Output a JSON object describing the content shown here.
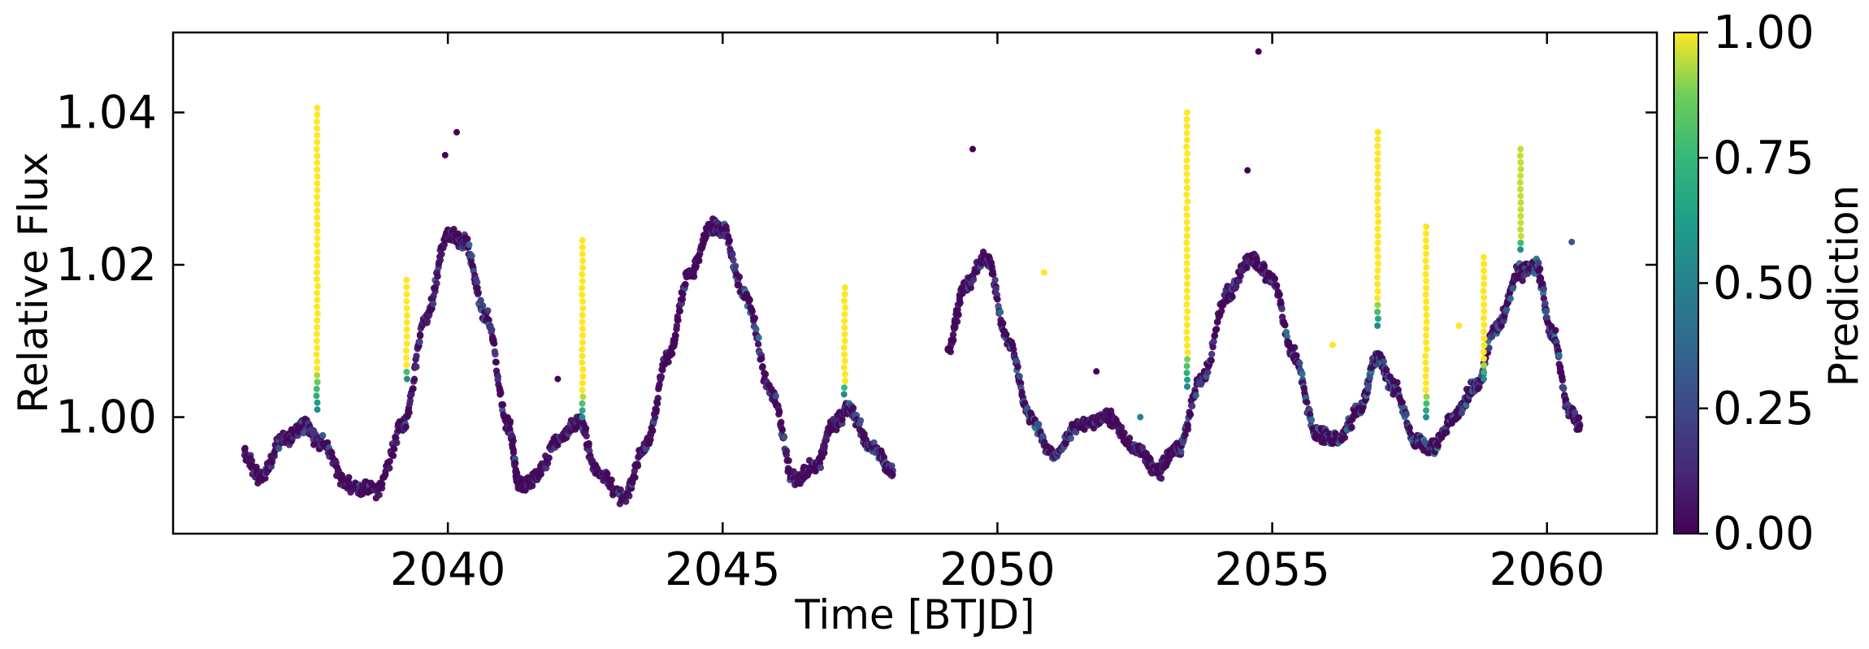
{
  "chart_data": {
    "type": "scatter",
    "title": "",
    "xlabel": "Time [BTJD]",
    "ylabel": "Relative Flux",
    "xlim": [
      2035.0,
      2062.0
    ],
    "ylim": [
      0.9847,
      1.0505
    ],
    "xticks": [
      2040,
      2045,
      2050,
      2055,
      2060
    ],
    "xtick_labels": [
      "2040",
      "2045",
      "2050",
      "2055",
      "2060"
    ],
    "yticks": [
      1.0,
      1.02,
      1.04
    ],
    "ytick_labels": [
      "1.00",
      "1.02",
      "1.04"
    ],
    "grid": false,
    "colorbar": {
      "label": "Prediction",
      "colormap": "viridis",
      "range": [
        0.0,
        1.0
      ],
      "ticks": [
        0.0,
        0.25,
        0.5,
        0.75,
        1.0
      ],
      "tick_labels": [
        "0.00",
        "0.25",
        "0.50",
        "0.75",
        "1.00"
      ]
    },
    "colors": {
      "low": "#440154",
      "mid_low": "#3b528b",
      "mid": "#21918c",
      "mid_high": "#5ec962",
      "high": "#fde725"
    },
    "series": [
      {
        "segment": "first",
        "x": [
          2036.3,
          2036.6,
          2037.0,
          2037.4,
          2037.7,
          2038.2,
          2038.7,
          2039.2,
          2039.6,
          2040.0,
          2040.3,
          2040.7,
          2041.1,
          2041.3,
          2041.6,
          2042.0,
          2042.4,
          2042.7,
          2043.2,
          2043.6,
          2044.0,
          2044.4,
          2044.8,
          2045.0,
          2045.4,
          2045.9,
          2046.3,
          2046.7,
          2047.0,
          2047.3,
          2047.7,
          2048.1
        ],
        "y": [
          0.995,
          0.992,
          0.997,
          0.999,
          0.9965,
          0.991,
          0.9905,
          0.999,
          1.013,
          1.024,
          1.023,
          1.013,
          0.999,
          0.991,
          0.992,
          0.997,
          0.9995,
          0.993,
          0.9895,
          0.996,
          1.008,
          1.019,
          1.025,
          1.0245,
          1.016,
          1.003,
          0.992,
          0.9935,
          0.999,
          1.001,
          0.996,
          0.993
        ],
        "prediction": [
          0.05,
          0.05,
          0.1,
          0.2,
          0.15,
          0.05,
          0.05,
          0.1,
          0.1,
          0.05,
          0.2,
          0.2,
          0.1,
          0.05,
          0.05,
          0.05,
          0.1,
          0.05,
          0.05,
          0.05,
          0.05,
          0.05,
          0.05,
          0.1,
          0.25,
          0.1,
          0.05,
          0.05,
          0.1,
          0.2,
          0.25,
          0.2
        ]
      },
      {
        "segment": "second",
        "x": [
          2049.1,
          2049.4,
          2049.8,
          2050.2,
          2050.6,
          2051.0,
          2051.5,
          2052.0,
          2052.5,
          2052.9,
          2053.3,
          2053.7,
          2054.2,
          2054.6,
          2055.0,
          2055.4,
          2055.8,
          2056.2,
          2056.6,
          2056.9,
          2057.2,
          2057.6,
          2057.9,
          2058.3,
          2058.7,
          2059.1,
          2059.5,
          2059.8,
          2060.1,
          2060.4,
          2060.6
        ],
        "y": [
          1.009,
          1.017,
          1.021,
          1.01,
          1.0,
          0.995,
          0.999,
          1.0,
          0.996,
          0.993,
          0.996,
          1.005,
          1.016,
          1.021,
          1.018,
          1.008,
          0.998,
          0.997,
          1.001,
          1.008,
          1.004,
          0.997,
          0.996,
          1.0,
          1.004,
          1.012,
          1.019,
          1.02,
          1.011,
          1.001,
          0.999
        ],
        "prediction": [
          0.05,
          0.05,
          0.1,
          0.25,
          0.3,
          0.25,
          0.15,
          0.05,
          0.05,
          0.05,
          0.2,
          0.2,
          0.1,
          0.1,
          0.15,
          0.25,
          0.3,
          0.3,
          0.25,
          0.3,
          0.25,
          0.3,
          0.3,
          0.25,
          0.2,
          0.2,
          0.15,
          0.2,
          0.25,
          0.2,
          0.2
        ]
      }
    ],
    "flares": [
      {
        "x": 2037.62,
        "y_start": 1.001,
        "y_end": 1.0406,
        "prediction": 1.0
      },
      {
        "x": 2039.25,
        "y_start": 1.005,
        "y_end": 1.018,
        "prediction": 1.0
      },
      {
        "x": 2042.45,
        "y_start": 1.0,
        "y_end": 1.0232,
        "prediction": 1.0
      },
      {
        "x": 2047.22,
        "y_start": 1.003,
        "y_end": 1.017,
        "prediction": 1.0
      },
      {
        "x": 2053.45,
        "y_start": 1.004,
        "y_end": 1.04,
        "prediction": 1.0
      },
      {
        "x": 2056.92,
        "y_start": 1.012,
        "y_end": 1.0374,
        "prediction": 1.0
      },
      {
        "x": 2057.8,
        "y_start": 1.0,
        "y_end": 1.025,
        "prediction": 1.0
      },
      {
        "x": 2058.85,
        "y_start": 1.005,
        "y_end": 1.021,
        "prediction": 1.0
      },
      {
        "x": 2059.52,
        "y_start": 1.022,
        "y_end": 1.0352,
        "prediction": 0.95
      }
    ],
    "outliers": [
      {
        "x": 2040.16,
        "y": 1.0374,
        "prediction": 0.0
      },
      {
        "x": 2039.95,
        "y": 1.0344,
        "prediction": 0.0
      },
      {
        "x": 2049.55,
        "y": 1.0352,
        "prediction": 0.0
      },
      {
        "x": 2054.75,
        "y": 1.048,
        "prediction": 0.0
      },
      {
        "x": 2054.55,
        "y": 1.0324,
        "prediction": 0.0
      },
      {
        "x": 2042.0,
        "y": 1.005,
        "prediction": 0.0
      },
      {
        "x": 2051.8,
        "y": 1.006,
        "prediction": 0.0
      },
      {
        "x": 2052.6,
        "y": 1.0,
        "prediction": 0.5
      },
      {
        "x": 2050.85,
        "y": 1.019,
        "prediction": 1.0
      },
      {
        "x": 2056.1,
        "y": 1.0095,
        "prediction": 1.0
      },
      {
        "x": 2058.4,
        "y": 1.012,
        "prediction": 1.0
      },
      {
        "x": 2060.45,
        "y": 1.023,
        "prediction": 0.3
      }
    ]
  }
}
